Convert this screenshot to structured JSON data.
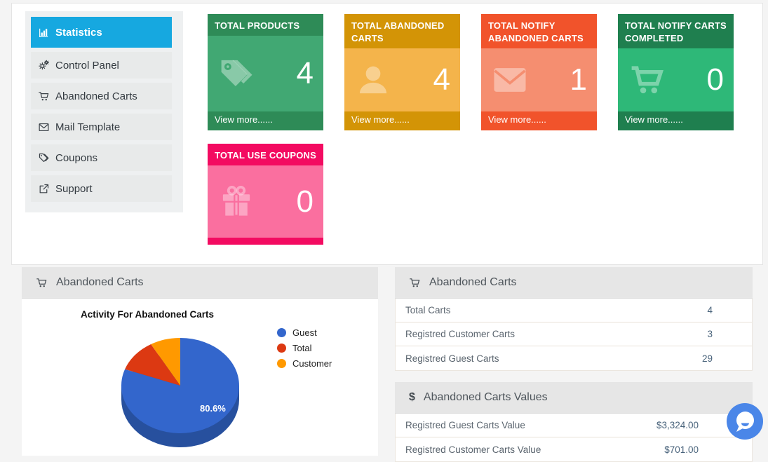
{
  "sidebar": {
    "active_color": "#16a8e0",
    "items": [
      {
        "label": "Statistics",
        "icon": "bar-chart",
        "active": true
      },
      {
        "label": "Control Panel",
        "icon": "gears",
        "active": false
      },
      {
        "label": "Abandoned Carts",
        "icon": "shopping-cart",
        "active": false
      },
      {
        "label": "Mail Template",
        "icon": "envelope",
        "active": false
      },
      {
        "label": "Coupons",
        "icon": "tags",
        "active": false
      },
      {
        "label": "Support",
        "icon": "external-link",
        "active": false
      }
    ]
  },
  "stat_cards": [
    {
      "title": "TOTAL PRODUCTS",
      "value": "4",
      "view_more": "View more......",
      "icon": "tags",
      "header_color": "#2e8b57",
      "body_color": "#41a873"
    },
    {
      "title": "TOTAL ABANDONED CARTS",
      "value": "4",
      "view_more": "View more......",
      "icon": "user",
      "header_color": "#d39406",
      "body_color": "#f4b44b"
    },
    {
      "title": "TOTAL NOTIFY ABANDONED CARTS",
      "value": "1",
      "view_more": "View more......",
      "icon": "envelope",
      "header_color": "#f1532b",
      "body_color": "#f58e70"
    },
    {
      "title": "TOTAL NOTIFY CARTS COMPLETED",
      "value": "0",
      "view_more": "View more......",
      "icon": "cart",
      "header_color": "#1f7f4f",
      "body_color": "#2eb878"
    },
    {
      "title": "TOTAL USE COUPONS",
      "value": "0",
      "icon": "gift",
      "header_color": "#f30b61",
      "body_color": "#fa6f9f"
    }
  ],
  "left_panel": {
    "title": "Abandoned Carts",
    "icon": "shopping-cart"
  },
  "chart_data": {
    "type": "pie",
    "style": "3d",
    "title": "Activity For Abandoned Carts",
    "labels": [
      "Guest",
      "Total",
      "Customer"
    ],
    "values": [
      29,
      4,
      3
    ],
    "percentages": [
      80.6,
      11.1,
      8.3
    ],
    "colors": [
      "#3366cc",
      "#dc3912",
      "#ff9900"
    ],
    "rim_color": "#27509e",
    "visible_label": "80.6%",
    "legend_position": "right"
  },
  "right_panel": {
    "title": "Abandoned Carts",
    "icon": "shopping-cart",
    "rows": [
      {
        "label": "Total Carts",
        "value": "4"
      },
      {
        "label": "Registred Customer Carts",
        "value": "3"
      },
      {
        "label": "Registred Guest Carts",
        "value": "29"
      }
    ]
  },
  "values_panel": {
    "title": "Abandoned Carts Values",
    "icon": "dollar",
    "rows": [
      {
        "label": "Registred Guest Carts Value",
        "value": "$3,324.00"
      },
      {
        "label": "Registred Customer Carts Value",
        "value": "$701.00"
      }
    ]
  },
  "chat_widget": {
    "color": "#4a86e8",
    "icon": "chat-bubble"
  }
}
